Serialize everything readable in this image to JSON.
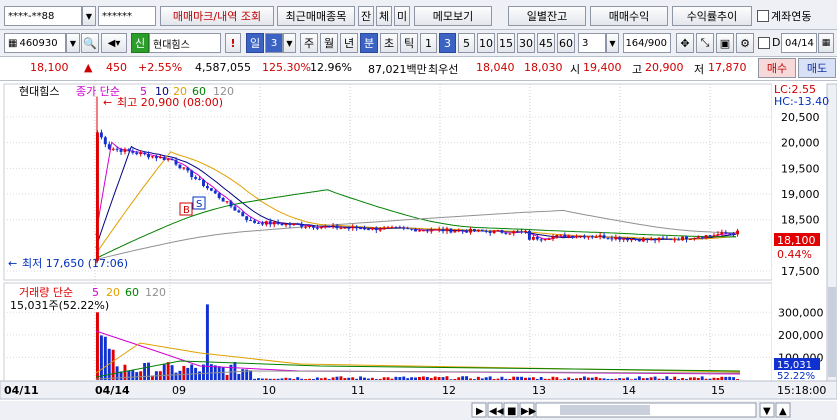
{
  "toolbar1": {
    "account": "****-**88",
    "password": "******",
    "trade_mark_btn": "매매마크/내역 조회",
    "recent_trades_btn": "최근매매종목",
    "btn_jan": "잔",
    "btn_che": "체",
    "btn_mi": "미",
    "memo_btn": "메모보기",
    "daily_balance_btn": "일별잔고",
    "trade_profit_btn": "매매수익",
    "return_rate_btn": "수익률추이",
    "account_link_label": "계좌연동"
  },
  "toolbar2": {
    "code": "460930",
    "credit_badge": "신",
    "stock_name": "현대힘스",
    "warn": "!",
    "period_day": "일",
    "period_num": "3",
    "period_week": "주",
    "period_month": "월",
    "period_year": "년",
    "period_min": "분",
    "period_sec": "초",
    "period_tick": "틱",
    "interval_1": "1",
    "interval_3": "3",
    "interval_5": "5",
    "interval_10": "10",
    "interval_15": "15",
    "interval_30": "30",
    "interval_45": "45",
    "interval_60": "60",
    "custom_interval": "3",
    "view_count": "164",
    "view_total": "/900",
    "d_label": "D",
    "date": "04/14"
  },
  "quote": {
    "price": "18,100",
    "arrow": "▲",
    "change": "450",
    "change_pct": "+2.55%",
    "volume": "4,587,055",
    "volume_ratio": "125.30%",
    "turnover": "12.96%",
    "amount": "87,021백만",
    "best_label": "최우선",
    "ask": "18,040",
    "bid": "18,030",
    "open_label": "시",
    "open": "19,400",
    "high_label": "고",
    "high": "20,900",
    "low_label": "저",
    "low": "17,870",
    "buy_btn": "매수",
    "sell_btn": "매도"
  },
  "price_panel": {
    "stock_label": "현대힘스",
    "ma_title": "종가 단순",
    "ma_periods": [
      "5",
      "10",
      "20",
      "60",
      "120"
    ],
    "high_note": "최고 20,900 (08:00)",
    "low_note": "최저 17,650 (17:06)",
    "lc_text": "LC:2.55",
    "hc_text": "HC:-13.40",
    "last_price_tag": "18,100",
    "last_pct_tag": "0.44%",
    "marker_b": "B",
    "marker_s": "S",
    "y_ticks": [
      "20,500",
      "20,000",
      "19,500",
      "19,000",
      "18,500",
      "17,500"
    ]
  },
  "volume_panel": {
    "title": "거래량 단순",
    "ma_periods": [
      "5",
      "20",
      "60",
      "120"
    ],
    "current": "15,031주(52.22%)",
    "y_ticks": [
      "300,000",
      "200,000",
      "100,000"
    ],
    "last_tag": "15,031",
    "last_pct_tag": "52.22%"
  },
  "x_axis": {
    "labels": [
      "04/11",
      "04/14",
      "09",
      "10",
      "11",
      "12",
      "13",
      "14",
      "15"
    ],
    "time": "15:18:00"
  },
  "colors": {
    "up": "#e00000",
    "down": "#1030d0",
    "ma5": "#d000d0",
    "ma10": "#000080",
    "ma20": "#e0a000",
    "ma60": "#008000",
    "ma120": "#909090"
  }
}
